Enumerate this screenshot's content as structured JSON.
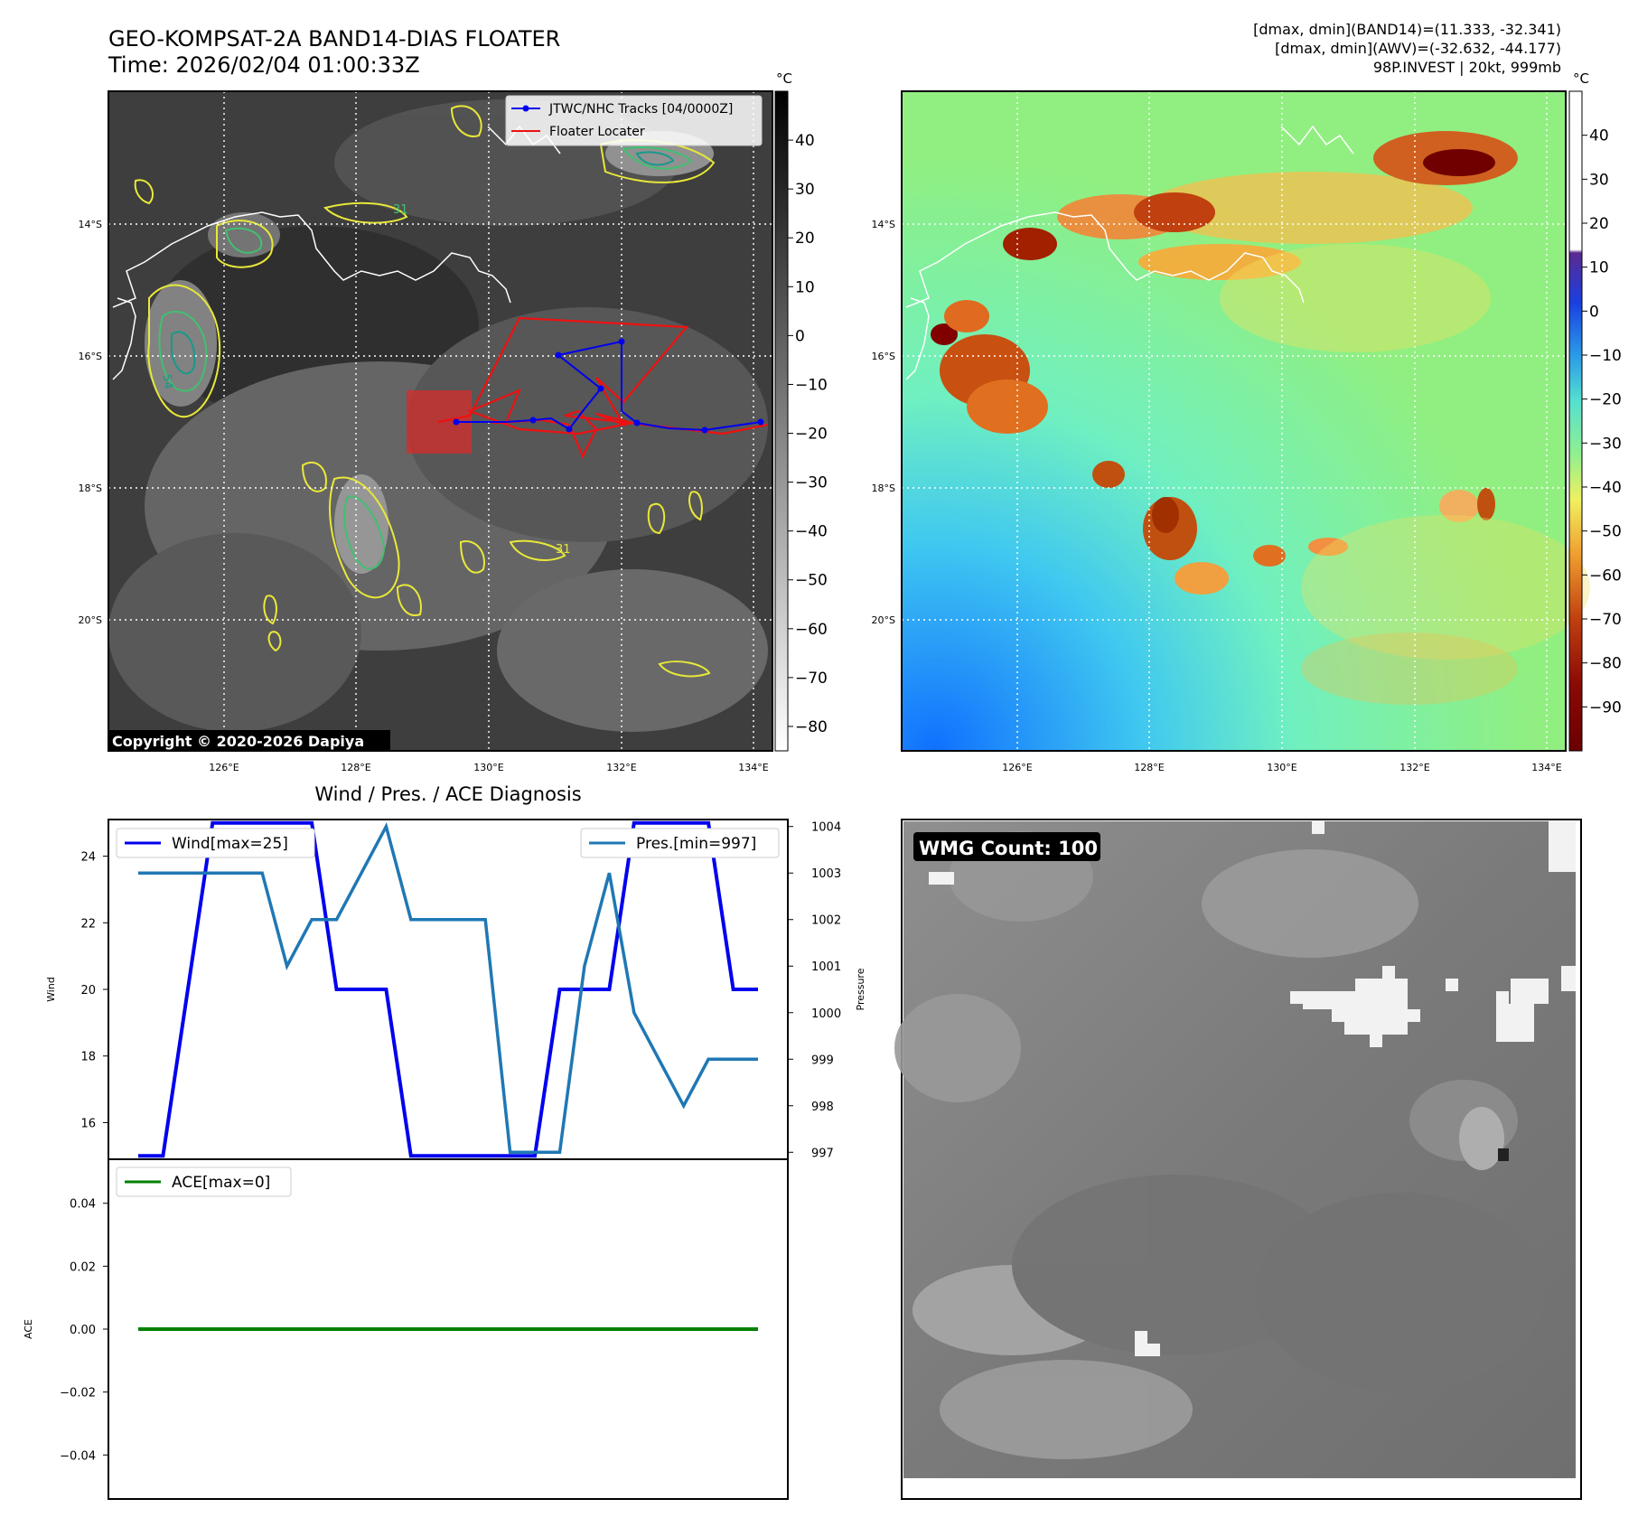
{
  "header": {
    "title_line1": "GEO-KOMPSAT-2A BAND14-DIAS FLOATER",
    "title_line2": "Time: 2026/02/04 01:00:33Z",
    "info_line1": "[dmax, dmin](BAND14)=(11.333, -32.341)",
    "info_line2": "[dmax, dmin](AWV)=(-32.632, -44.177)",
    "info_line3": "98P.INVEST | 20kt, 999mb"
  },
  "ir_panel": {
    "legend_tracks": "JTWC/NHC Tracks [04/0000Z]",
    "legend_floater": "Floater Locater",
    "copyright": "Copyright © 2020-2026 Dapiya",
    "lat_labels": [
      "14°S",
      "16°S",
      "18°S",
      "20°S"
    ],
    "lon_labels": [
      "126°E",
      "128°E",
      "130°E",
      "132°E",
      "134°E"
    ],
    "colorbar_unit": "°C",
    "colorbar_ticks": [
      "40",
      "30",
      "20",
      "10",
      "0",
      "−10",
      "−20",
      "−30",
      "−40",
      "−50",
      "−60",
      "−70",
      "−80"
    ],
    "contour_labels": [
      "31",
      "54",
      "31"
    ]
  },
  "awv_panel": {
    "lat_labels": [
      "14°S",
      "16°S",
      "18°S",
      "20°S"
    ],
    "lon_labels": [
      "126°E",
      "128°E",
      "130°E",
      "132°E",
      "134°E"
    ],
    "colorbar_unit": "°C",
    "colorbar_ticks": [
      "40",
      "30",
      "20",
      "10",
      "0",
      "−10",
      "−20",
      "−30",
      "−40",
      "−50",
      "−60",
      "−70",
      "−80",
      "−90"
    ]
  },
  "wmg_panel": {
    "label": "WMG Count: 100"
  },
  "chart_data": [
    {
      "type": "line",
      "title": "Wind / Pres. / ACE Diagnosis",
      "ylabel": "Wind",
      "y2label": "Pressure",
      "ylim": [
        14.9,
        25.1
      ],
      "y2lim": [
        996.85,
        1004.15
      ],
      "yticks": [
        "16",
        "18",
        "20",
        "22",
        "24"
      ],
      "y2ticks": [
        "997",
        "998",
        "999",
        "1000",
        "1001",
        "1002",
        "1003",
        "1004"
      ],
      "x": [
        0,
        1,
        2,
        3,
        4,
        5,
        6,
        7,
        8,
        9,
        10,
        11,
        12,
        13,
        14,
        15,
        16,
        17,
        18,
        19,
        20,
        21,
        22,
        23,
        24,
        25
      ],
      "series": [
        {
          "name": "Wind[max=25]",
          "color": "#0000ee",
          "axis": "left",
          "values": [
            15,
            15,
            20,
            25,
            25,
            25,
            25,
            25,
            20,
            20,
            20,
            15,
            15,
            15,
            15,
            15,
            15,
            20,
            20,
            20,
            25,
            25,
            25,
            25,
            20,
            20
          ]
        },
        {
          "name": "Pres.[min=997]",
          "color": "#1f77b4",
          "axis": "right",
          "values": [
            1003,
            1003,
            1003,
            1003,
            1003,
            1003,
            1001,
            1002,
            1002,
            1003,
            1004,
            1002,
            1002,
            1002,
            1002,
            997,
            997,
            997,
            1001,
            1003,
            1000,
            999,
            998,
            999,
            999,
            999
          ]
        }
      ]
    },
    {
      "type": "line",
      "ylabel": "ACE",
      "ylim": [
        -0.054,
        0.054
      ],
      "yticks": [
        "0.04",
        "0.02",
        "0.00",
        "−0.02",
        "−0.04"
      ],
      "x": [
        0,
        1,
        2,
        3,
        4,
        5,
        6,
        7,
        8,
        9,
        10,
        11,
        12,
        13,
        14,
        15,
        16,
        17,
        18,
        19,
        20,
        21,
        22,
        23,
        24,
        25
      ],
      "series": [
        {
          "name": "ACE[max=0]",
          "color": "#008000",
          "values": [
            0,
            0,
            0,
            0,
            0,
            0,
            0,
            0,
            0,
            0,
            0,
            0,
            0,
            0,
            0,
            0,
            0,
            0,
            0,
            0,
            0,
            0,
            0,
            0,
            0,
            0
          ]
        }
      ]
    }
  ]
}
